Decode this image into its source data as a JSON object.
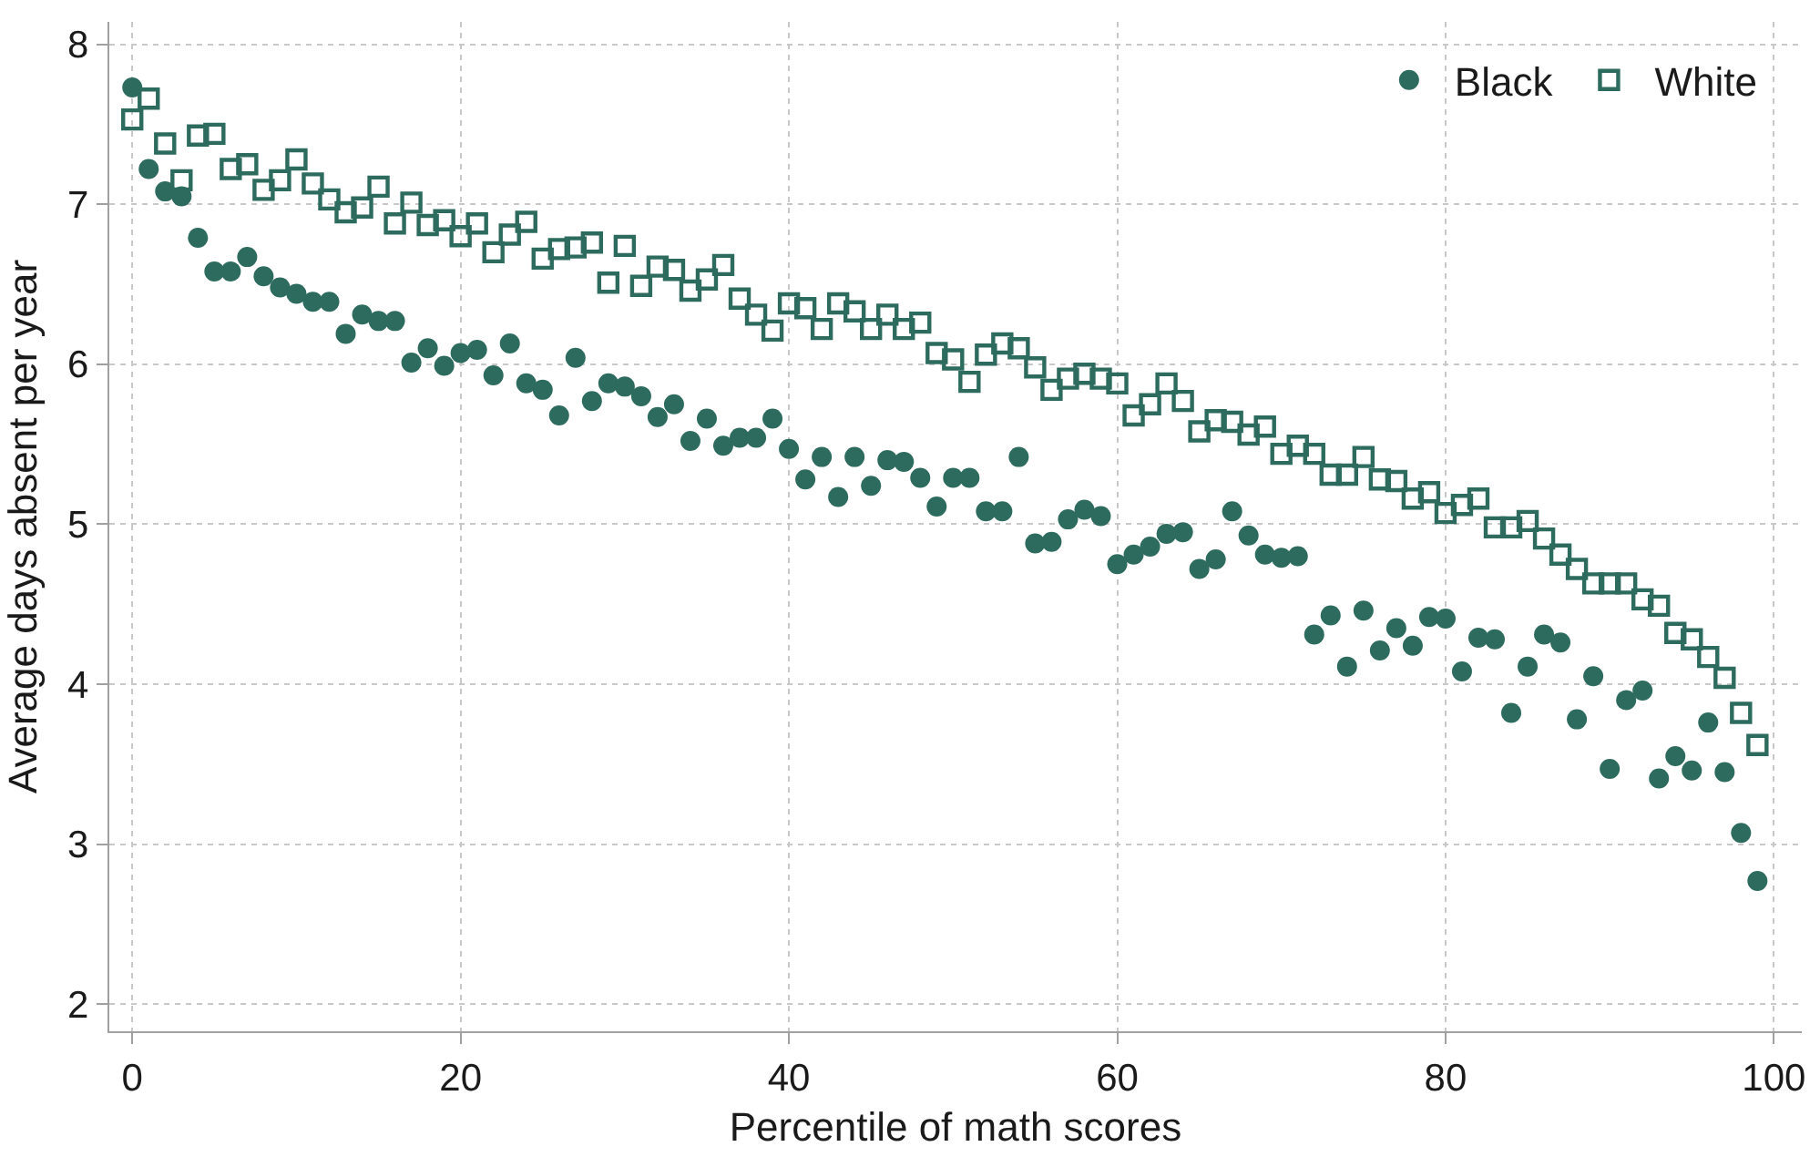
{
  "chart_data": {
    "type": "scatter",
    "xlabel": "Percentile of math scores",
    "ylabel": "Average days absent per year",
    "x": [
      0,
      1,
      2,
      3,
      4,
      5,
      6,
      7,
      8,
      9,
      10,
      11,
      12,
      13,
      14,
      15,
      16,
      17,
      18,
      19,
      20,
      21,
      22,
      23,
      24,
      25,
      26,
      27,
      28,
      29,
      30,
      31,
      32,
      33,
      34,
      35,
      36,
      37,
      38,
      39,
      40,
      41,
      42,
      43,
      44,
      45,
      46,
      47,
      48,
      49,
      50,
      51,
      52,
      53,
      54,
      55,
      56,
      57,
      58,
      59,
      60,
      61,
      62,
      63,
      64,
      65,
      66,
      67,
      68,
      69,
      70,
      71,
      72,
      73,
      74,
      75,
      76,
      77,
      78,
      79,
      80,
      81,
      82,
      83,
      84,
      85,
      86,
      87,
      88,
      89,
      90,
      91,
      92,
      93,
      94,
      95,
      96,
      97,
      98,
      99
    ],
    "series": [
      {
        "name": "Black",
        "color": "#2d6b5f",
        "marker": "circle",
        "values": [
          7.73,
          7.22,
          7.08,
          7.05,
          6.79,
          6.58,
          6.58,
          6.67,
          6.55,
          6.48,
          6.44,
          6.39,
          6.39,
          6.19,
          6.31,
          6.27,
          6.27,
          6.01,
          6.1,
          5.99,
          6.07,
          6.09,
          5.93,
          6.13,
          5.88,
          5.84,
          5.68,
          6.04,
          5.77,
          5.88,
          5.86,
          5.8,
          5.67,
          5.75,
          5.52,
          5.66,
          5.49,
          5.54,
          5.54,
          5.66,
          5.47,
          5.28,
          5.42,
          5.17,
          5.42,
          5.24,
          5.4,
          5.39,
          5.29,
          5.11,
          5.29,
          5.29,
          5.08,
          5.08,
          5.42,
          4.88,
          4.89,
          5.03,
          5.09,
          5.05,
          4.75,
          4.81,
          4.86,
          4.94,
          4.95,
          4.72,
          4.78,
          5.08,
          4.93,
          4.81,
          4.79,
          4.8,
          4.31,
          4.43,
          4.11,
          4.46,
          4.21,
          4.35,
          4.24,
          4.42,
          4.41,
          4.08,
          4.29,
          4.28,
          3.82,
          4.11,
          4.31,
          4.26,
          3.78,
          4.05,
          3.47,
          3.9,
          3.96,
          3.41,
          3.55,
          3.46,
          3.76,
          3.45,
          3.07,
          2.77
        ]
      },
      {
        "name": "White",
        "color": "#2d6b5f",
        "marker": "square-open",
        "values": [
          7.53,
          7.66,
          7.38,
          7.15,
          7.43,
          7.44,
          7.22,
          7.25,
          7.09,
          7.15,
          7.28,
          7.13,
          7.03,
          6.95,
          6.98,
          7.11,
          6.88,
          7.01,
          6.87,
          6.9,
          6.8,
          6.88,
          6.7,
          6.81,
          6.89,
          6.66,
          6.72,
          6.73,
          6.76,
          6.51,
          6.74,
          6.49,
          6.61,
          6.59,
          6.46,
          6.53,
          6.62,
          6.41,
          6.31,
          6.21,
          6.38,
          6.35,
          6.22,
          6.38,
          6.33,
          6.22,
          6.31,
          6.22,
          6.26,
          6.07,
          6.03,
          5.89,
          6.06,
          6.13,
          6.1,
          5.98,
          5.84,
          5.91,
          5.94,
          5.91,
          5.88,
          5.68,
          5.75,
          5.88,
          5.77,
          5.58,
          5.65,
          5.64,
          5.56,
          5.61,
          5.44,
          5.49,
          5.44,
          5.31,
          5.31,
          5.42,
          5.28,
          5.27,
          5.16,
          5.2,
          5.07,
          5.12,
          5.16,
          4.98,
          4.98,
          5.02,
          4.91,
          4.81,
          4.72,
          4.63,
          4.63,
          4.63,
          4.53,
          4.49,
          4.32,
          4.28,
          4.17,
          4.04,
          3.82,
          3.62
        ]
      }
    ],
    "xlim": [
      -1.4,
      101.7
    ],
    "xticks": [
      0,
      20,
      40,
      60,
      80,
      100
    ],
    "ylim": [
      1.83,
      8.14
    ],
    "yticks": [
      2,
      3,
      4,
      5,
      6,
      7,
      8
    ],
    "grid": true,
    "legend": "top right"
  }
}
